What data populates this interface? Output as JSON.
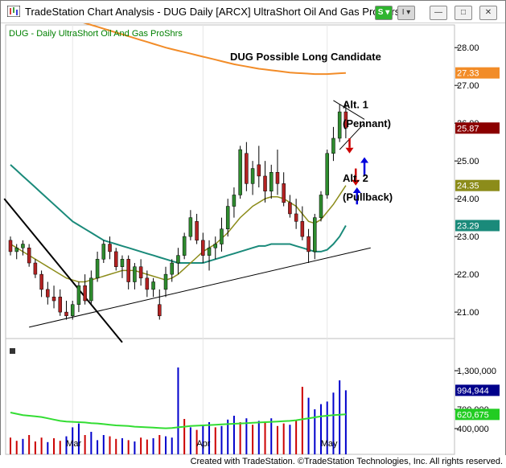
{
  "window": {
    "title": "TradeStation Chart Analysis - DUG Daily [ARCX] UltraShort Oil And Gas ProShrs",
    "symbol_button": "S",
    "indicator_button": "I",
    "minimize_label": "—",
    "maximize_label": "□",
    "close_label": "✕"
  },
  "footer": {
    "credit": "Created with TradeStation. ©TradeStation Technologies, Inc. All rights reserved."
  },
  "colors": {
    "up_candle": "#2e8b2e",
    "down_candle": "#b22222",
    "ma_orange": "#f28c28",
    "ma_teal": "#1a8a7a",
    "ma_olive": "#8c8c1a",
    "vol_avg": "#33dd33",
    "arrow_up": "#0000dd",
    "arrow_down": "#cc0000",
    "title_green": "#008000"
  },
  "chart_data": {
    "type": "candlestick",
    "symbol_label": "DUG - Daily  UltraShort Oil And Gas ProShrs",
    "title": "DUG Possible Long Candidate",
    "price_ticks": [
      "28.00",
      "27.00",
      "26.00",
      "25.00",
      "24.00",
      "23.00",
      "22.00",
      "21.00"
    ],
    "price_range": [
      20.3,
      28.6
    ],
    "volume_ticks": [
      "1,300,000",
      "700,000",
      "400,000"
    ],
    "volume_range": [
      0,
      1800000
    ],
    "x_ticks": [
      "Mar",
      "Apr",
      "May"
    ],
    "x_tick_bars": [
      10,
      31,
      51
    ],
    "price_tags": [
      {
        "label": "27.33",
        "value": 27.33,
        "color": "#f28c28"
      },
      {
        "label": "25.87",
        "value": 25.87,
        "color": "#8b0000"
      },
      {
        "label": "24.35",
        "value": 24.35,
        "color": "#8c8c1a"
      },
      {
        "label": "23.29",
        "value": 23.29,
        "color": "#1a8a7a"
      }
    ],
    "volume_tags": [
      {
        "label": "994,944",
        "value": 994944,
        "color": "#00008b"
      },
      {
        "label": "620,675",
        "value": 620675,
        "color": "#22cc22"
      }
    ],
    "annotations": [
      {
        "text": "Alt. 1",
        "bar": 53.5,
        "price": 26.4
      },
      {
        "text": "(Pennant)",
        "bar": 53.5,
        "price": 25.9
      },
      {
        "text": "Alt. 2",
        "bar": 53.5,
        "price": 24.45
      },
      {
        "text": "(Pullback)",
        "bar": 53.5,
        "price": 23.95
      }
    ],
    "ohlc": [
      [
        22.9,
        23.0,
        22.5,
        22.6
      ],
      [
        22.6,
        22.8,
        22.4,
        22.7
      ],
      [
        22.7,
        22.9,
        22.5,
        22.8
      ],
      [
        22.7,
        22.8,
        22.2,
        22.3
      ],
      [
        22.3,
        22.4,
        21.9,
        22.0
      ],
      [
        22.0,
        22.1,
        21.4,
        21.6
      ],
      [
        21.6,
        21.8,
        21.2,
        21.4
      ],
      [
        21.4,
        21.7,
        21.1,
        21.3
      ],
      [
        21.4,
        21.6,
        20.9,
        21.0
      ],
      [
        21.0,
        21.3,
        20.8,
        20.9
      ],
      [
        20.9,
        21.3,
        20.8,
        21.2
      ],
      [
        21.2,
        21.8,
        21.0,
        21.7
      ],
      [
        21.7,
        22.0,
        21.2,
        21.3
      ],
      [
        21.3,
        22.1,
        21.2,
        21.9
      ],
      [
        21.9,
        22.6,
        21.8,
        22.4
      ],
      [
        22.4,
        22.9,
        22.3,
        22.8
      ],
      [
        22.8,
        23.0,
        22.4,
        22.6
      ],
      [
        22.6,
        22.7,
        22.1,
        22.2
      ],
      [
        22.2,
        22.5,
        21.9,
        22.4
      ],
      [
        22.4,
        22.5,
        21.6,
        21.8
      ],
      [
        21.8,
        22.3,
        21.6,
        22.2
      ],
      [
        22.2,
        22.4,
        21.7,
        21.9
      ],
      [
        21.9,
        22.1,
        21.4,
        21.6
      ],
      [
        21.6,
        21.9,
        21.4,
        21.8
      ],
      [
        21.2,
        21.6,
        20.8,
        20.9
      ],
      [
        21.6,
        22.2,
        21.4,
        22.0
      ],
      [
        22.0,
        22.4,
        21.8,
        22.3
      ],
      [
        22.3,
        22.7,
        22.0,
        22.5
      ],
      [
        22.5,
        23.1,
        22.4,
        23.0
      ],
      [
        23.0,
        23.7,
        22.9,
        23.5
      ],
      [
        23.4,
        23.6,
        22.8,
        22.9
      ],
      [
        22.9,
        23.1,
        22.3,
        22.5
      ],
      [
        22.5,
        22.9,
        22.1,
        22.7
      ],
      [
        22.7,
        23.0,
        22.4,
        22.8
      ],
      [
        22.8,
        23.5,
        22.6,
        23.2
      ],
      [
        23.2,
        24.0,
        23.0,
        23.8
      ],
      [
        23.8,
        24.3,
        23.5,
        24.1
      ],
      [
        24.1,
        25.4,
        24.0,
        25.3
      ],
      [
        25.2,
        25.5,
        24.2,
        24.4
      ],
      [
        24.4,
        25.0,
        24.1,
        24.8
      ],
      [
        24.9,
        25.4,
        24.3,
        24.6
      ],
      [
        24.6,
        25.0,
        23.9,
        24.2
      ],
      [
        24.2,
        24.9,
        24.0,
        24.7
      ],
      [
        24.7,
        25.3,
        24.1,
        24.4
      ],
      [
        24.4,
        24.7,
        23.8,
        23.9
      ],
      [
        23.9,
        24.1,
        23.5,
        23.6
      ],
      [
        23.6,
        24.0,
        23.2,
        23.4
      ],
      [
        23.4,
        23.8,
        22.9,
        23.0
      ],
      [
        23.0,
        23.2,
        22.3,
        22.6
      ],
      [
        22.6,
        23.6,
        22.4,
        23.5
      ],
      [
        23.5,
        24.2,
        23.4,
        24.1
      ],
      [
        24.1,
        25.3,
        24.0,
        25.2
      ],
      [
        25.2,
        25.9,
        25.0,
        25.6
      ],
      [
        25.6,
        26.5,
        25.5,
        26.3
      ],
      [
        26.3,
        26.5,
        25.6,
        25.87
      ]
    ],
    "volume": [
      [
        260000,
        "dn"
      ],
      [
        210000,
        "dn"
      ],
      [
        240000,
        "up"
      ],
      [
        300000,
        "dn"
      ],
      [
        200000,
        "dn"
      ],
      [
        260000,
        "dn"
      ],
      [
        190000,
        "up"
      ],
      [
        250000,
        "dn"
      ],
      [
        210000,
        "dn"
      ],
      [
        280000,
        "up"
      ],
      [
        420000,
        "up"
      ],
      [
        480000,
        "up"
      ],
      [
        300000,
        "dn"
      ],
      [
        350000,
        "up"
      ],
      [
        220000,
        "up"
      ],
      [
        300000,
        "up"
      ],
      [
        280000,
        "dn"
      ],
      [
        240000,
        "dn"
      ],
      [
        250000,
        "up"
      ],
      [
        220000,
        "dn"
      ],
      [
        200000,
        "up"
      ],
      [
        260000,
        "dn"
      ],
      [
        230000,
        "dn"
      ],
      [
        250000,
        "up"
      ],
      [
        300000,
        "dn"
      ],
      [
        280000,
        "up"
      ],
      [
        260000,
        "up"
      ],
      [
        1350000,
        "up"
      ],
      [
        550000,
        "dn"
      ],
      [
        420000,
        "up"
      ],
      [
        380000,
        "dn"
      ],
      [
        460000,
        "up"
      ],
      [
        500000,
        "up"
      ],
      [
        420000,
        "dn"
      ],
      [
        440000,
        "up"
      ],
      [
        540000,
        "up"
      ],
      [
        600000,
        "up"
      ],
      [
        500000,
        "dn"
      ],
      [
        560000,
        "up"
      ],
      [
        460000,
        "dn"
      ],
      [
        520000,
        "up"
      ],
      [
        500000,
        "dn"
      ],
      [
        560000,
        "up"
      ],
      [
        440000,
        "dn"
      ],
      [
        480000,
        "dn"
      ],
      [
        460000,
        "up"
      ],
      [
        520000,
        "dn"
      ],
      [
        1050000,
        "dn"
      ],
      [
        880000,
        "up"
      ],
      [
        700000,
        "up"
      ],
      [
        780000,
        "up"
      ],
      [
        820000,
        "up"
      ],
      [
        960000,
        "up"
      ],
      [
        1150000,
        "up"
      ],
      [
        994944,
        "up"
      ]
    ],
    "volume_average": [
      650000,
      630000,
      610000,
      600000,
      590000,
      580000,
      560000,
      540000,
      520000,
      510000,
      505000,
      500000,
      495000,
      485000,
      480000,
      470000,
      460000,
      450000,
      445000,
      440000,
      430000,
      425000,
      420000,
      415000,
      410000,
      405000,
      410000,
      420000,
      430000,
      440000,
      445000,
      450000,
      455000,
      460000,
      465000,
      470000,
      475000,
      480000,
      485000,
      490000,
      495000,
      500000,
      505000,
      510000,
      515000,
      520000,
      530000,
      545000,
      560000,
      575000,
      590000,
      600000,
      610000,
      615000,
      620675
    ],
    "ma_fast": [
      22.8,
      22.7,
      22.6,
      22.5,
      22.4,
      22.3,
      22.2,
      22.1,
      22.0,
      21.9,
      21.85,
      21.8,
      21.8,
      21.85,
      21.9,
      21.95,
      22.0,
      22.05,
      22.1,
      22.1,
      22.1,
      22.05,
      22.0,
      21.95,
      21.9,
      21.85,
      21.9,
      22.0,
      22.15,
      22.3,
      22.45,
      22.6,
      22.7,
      22.8,
      22.95,
      23.1,
      23.3,
      23.5,
      23.65,
      23.8,
      23.9,
      24.0,
      24.05,
      24.05,
      24.0,
      23.9,
      23.8,
      23.6,
      23.4,
      23.35,
      23.45,
      23.65,
      23.85,
      24.1,
      24.35
    ],
    "ma_mid": [
      24.9,
      24.75,
      24.6,
      24.45,
      24.3,
      24.15,
      24.0,
      23.85,
      23.7,
      23.55,
      23.4,
      23.3,
      23.2,
      23.1,
      23.0,
      22.9,
      22.85,
      22.8,
      22.75,
      22.7,
      22.65,
      22.6,
      22.55,
      22.5,
      22.45,
      22.4,
      22.35,
      22.3,
      22.3,
      22.3,
      22.3,
      22.3,
      22.35,
      22.4,
      22.45,
      22.5,
      22.55,
      22.6,
      22.65,
      22.7,
      22.75,
      22.75,
      22.8,
      22.8,
      22.8,
      22.8,
      22.75,
      22.7,
      22.65,
      22.6,
      22.6,
      22.65,
      22.8,
      23.0,
      23.29
    ],
    "ma_slow": [
      28.9,
      28.85,
      28.8,
      28.75,
      28.7,
      28.65,
      28.6,
      28.55,
      28.5,
      28.45,
      28.4,
      28.35,
      28.3,
      28.25,
      28.2,
      28.15,
      28.1,
      28.05,
      28.0,
      27.96,
      27.92,
      27.88,
      27.84,
      27.8,
      27.76,
      27.72,
      27.68,
      27.64,
      27.6,
      27.56,
      27.53,
      27.5,
      27.47,
      27.44,
      27.42,
      27.4,
      27.38,
      27.36,
      27.34,
      27.33,
      27.32,
      27.31,
      27.3,
      27.3,
      27.3,
      27.31,
      27.32,
      27.33
    ],
    "ma_slow_start_bar": 7,
    "trendlines": [
      {
        "name": "support-trendline",
        "from": [
          3,
          20.6
        ],
        "to": [
          58,
          22.7
        ]
      },
      {
        "name": "resistance-trendline",
        "from": [
          -1,
          24.0
        ],
        "to": [
          18,
          20.2
        ]
      },
      {
        "name": "pennant-upper",
        "from": [
          52,
          26.6
        ],
        "to": [
          57,
          26.1
        ]
      },
      {
        "name": "pennant-lower",
        "from": [
          53,
          25.3
        ],
        "to": [
          57,
          26.0
        ]
      }
    ],
    "arrows": [
      {
        "name": "down-arrow-1",
        "direction": "down",
        "bar": 54.6,
        "price_top": 25.6,
        "price_bottom": 25.2
      },
      {
        "name": "down-arrow-2",
        "direction": "down",
        "bar": 55.6,
        "price_top": 24.8,
        "price_bottom": 24.35
      },
      {
        "name": "up-arrow-1",
        "direction": "up",
        "bar": 57.0,
        "price_top": 25.1,
        "price_bottom": 24.6
      },
      {
        "name": "up-arrow-2",
        "direction": "up",
        "bar": 55.8,
        "price_top": 24.3,
        "price_bottom": 23.85
      }
    ]
  }
}
